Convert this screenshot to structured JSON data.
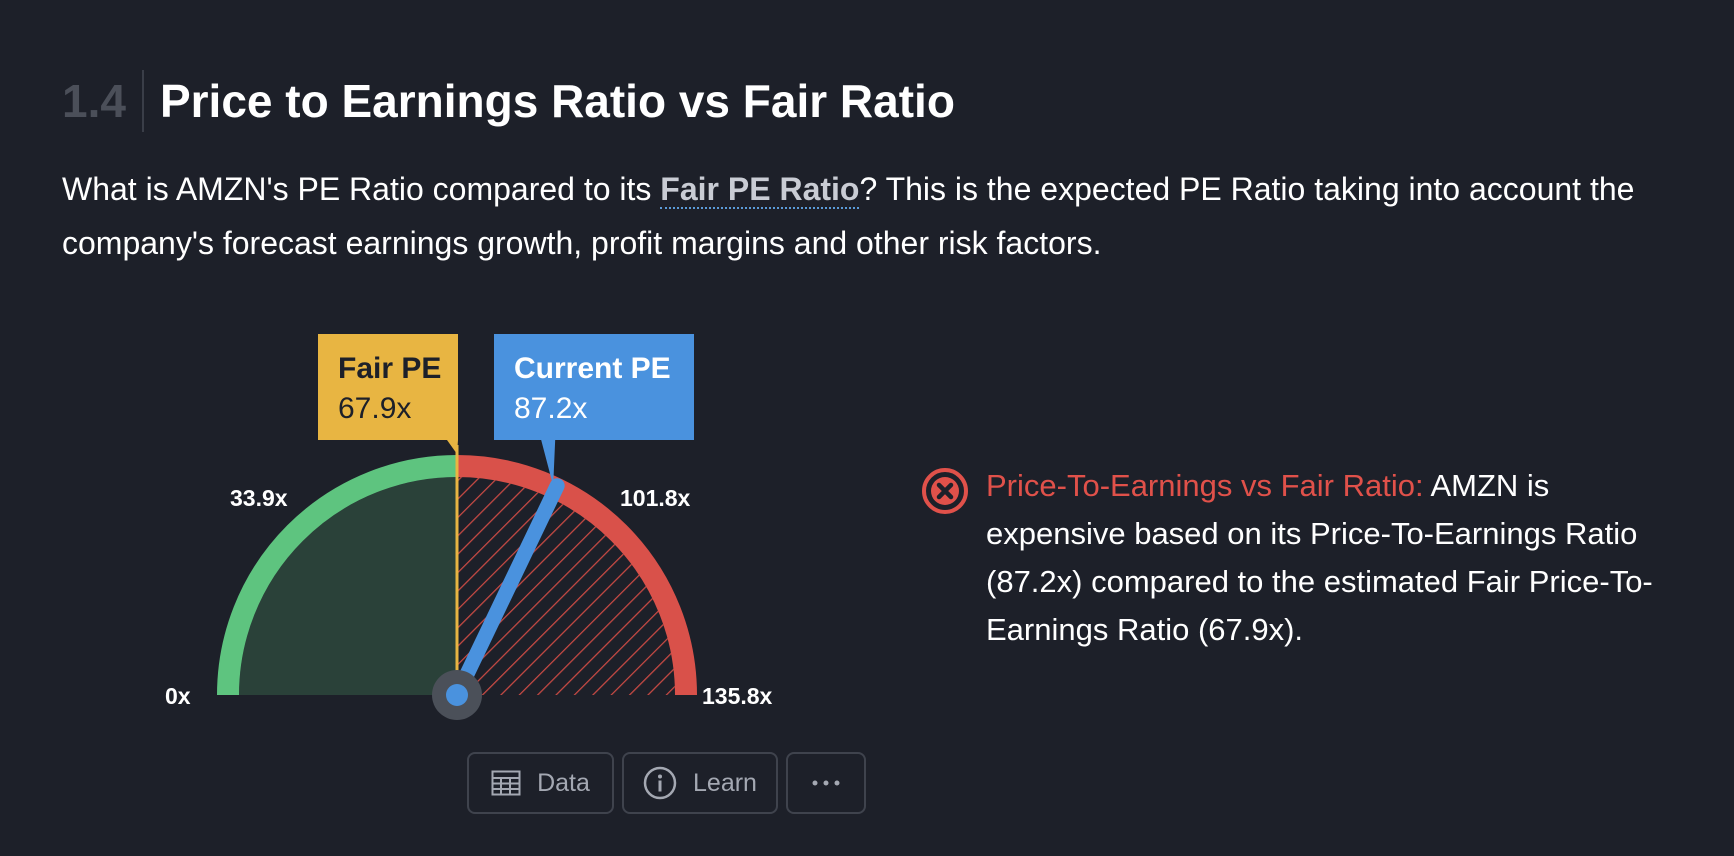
{
  "section": {
    "number": "1.4",
    "title": "Price to Earnings Ratio vs Fair Ratio"
  },
  "description": {
    "before": "What is AMZN's PE Ratio compared to its ",
    "term": "Fair PE Ratio",
    "after": "? This is the expected PE Ratio taking into account the company's forecast earnings growth, profit margins and other risk factors."
  },
  "chart_data": {
    "type": "gauge",
    "min": 0,
    "max": 135.8,
    "fair_pe": {
      "label": "Fair PE",
      "value": 67.9,
      "display": "67.9x"
    },
    "current_pe": {
      "label": "Current PE",
      "value": 87.2,
      "display": "87.2x"
    },
    "ticks": [
      {
        "value": 0,
        "label": "0x"
      },
      {
        "value": 33.9,
        "label": "33.9x"
      },
      {
        "value": 101.8,
        "label": "101.8x"
      },
      {
        "value": 135.8,
        "label": "135.8x"
      }
    ],
    "colors": {
      "undervalued_arc": "#5ec47f",
      "undervalued_fill": "#2a4139",
      "overvalued_arc": "#d9514a",
      "overvalued_hatch": "#c94a44",
      "fair_pe": "#e8b542",
      "current_pe": "#4a92de",
      "pivot": "#4b5059"
    }
  },
  "verdict": {
    "status": "fail",
    "icon": "x-circle-icon",
    "label": "Price-To-Earnings vs Fair Ratio:",
    "text": " AMZN is expensive based on its Price-To-Earnings Ratio (87.2x) compared to the estimated Fair Price-To-Earnings Ratio (67.9x)."
  },
  "actions": {
    "data_label": "Data",
    "learn_label": "Learn",
    "more_icon": "more-horizontal-icon"
  }
}
